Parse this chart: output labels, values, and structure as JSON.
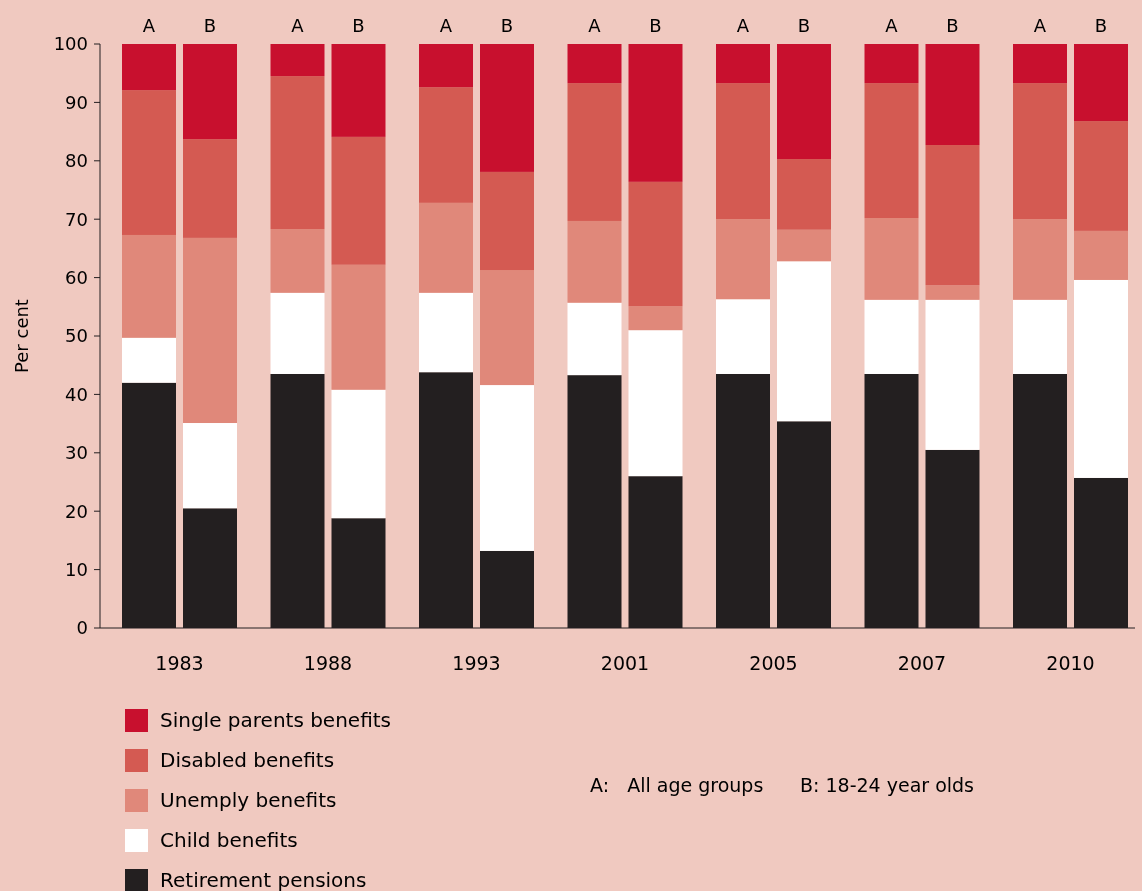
{
  "chart_data": {
    "type": "bar",
    "stacked": true,
    "ylabel": "Per cent",
    "categories": [
      "A",
      "B",
      "A",
      "B",
      "A",
      "B",
      "A",
      "B",
      "A",
      "B",
      "A",
      "B",
      "A",
      "B"
    ],
    "series": [
      {
        "name": "Retirement pensions",
        "color": "#231f20",
        "values": [
          42,
          20.5,
          43.5,
          18.8,
          43.8,
          13.2,
          43.3,
          26,
          43.5,
          35.4,
          43.5,
          30.5,
          43.5,
          25.7
        ]
      },
      {
        "name": "Child benefits",
        "color": "#ffffff",
        "values": [
          7.7,
          14.6,
          13.9,
          22,
          13.6,
          28.4,
          12.4,
          25,
          12.8,
          27.4,
          12.7,
          25.7,
          12.7,
          33.9
        ]
      },
      {
        "name": "Unemply benefits",
        "color": "#e0887a",
        "values": [
          17.6,
          31.7,
          10.9,
          21.4,
          15.4,
          19.7,
          14,
          4.1,
          13.7,
          5.4,
          14,
          2.5,
          13.8,
          8.4
        ]
      },
      {
        "name": "Disabled benefits",
        "color": "#d45a52",
        "values": [
          24.8,
          16.9,
          26.2,
          21.9,
          19.8,
          16.8,
          23.6,
          21.3,
          23.3,
          12.1,
          23.1,
          24,
          23.3,
          18.8
        ]
      },
      {
        "name": "Single parents benefits",
        "color": "#c8102e",
        "values": [
          7.9,
          16.3,
          5.5,
          15.9,
          7.4,
          21.9,
          6.7,
          23.6,
          6.7,
          19.7,
          6.7,
          17.3,
          6.7,
          13.2
        ]
      }
    ],
    "ylim": [
      0,
      100
    ],
    "yticks": [
      0,
      10,
      20,
      30,
      40,
      50,
      60,
      70,
      80,
      90,
      100
    ],
    "legend": "bottom",
    "annotations": [
      "1983",
      "1988",
      "1993",
      "2001",
      "2005",
      "2007",
      "2010",
      "A:   All age groups",
      "B: 18-24 year olds"
    ]
  }
}
